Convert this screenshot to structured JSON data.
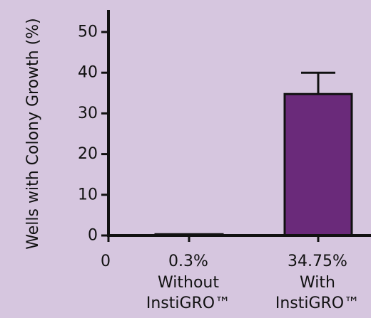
{
  "chart_data": {
    "type": "bar",
    "title": "",
    "xlabel": "",
    "ylabel": "Wells with Colony Growth (%)",
    "ylim": [
      0,
      50
    ],
    "yticks": [
      0,
      10,
      20,
      30,
      40,
      50
    ],
    "x_origin_label": "0",
    "categories": [
      "Without InstiGRO™",
      "With InstiGRO™"
    ],
    "category_lines": [
      [
        "0.3%",
        "Without",
        "InstiGRO™"
      ],
      [
        "34.75%",
        "With",
        "InstiGRO™"
      ]
    ],
    "values": [
      0.3,
      34.75
    ],
    "error_upper": [
      0,
      5.25
    ],
    "bar_colors": [
      "#6a2a7a",
      "#6a2a7a"
    ],
    "grid": false
  },
  "colors": {
    "background": "#d6c6df",
    "bar_fill": "#6a2a7a",
    "axis": "#111111"
  }
}
